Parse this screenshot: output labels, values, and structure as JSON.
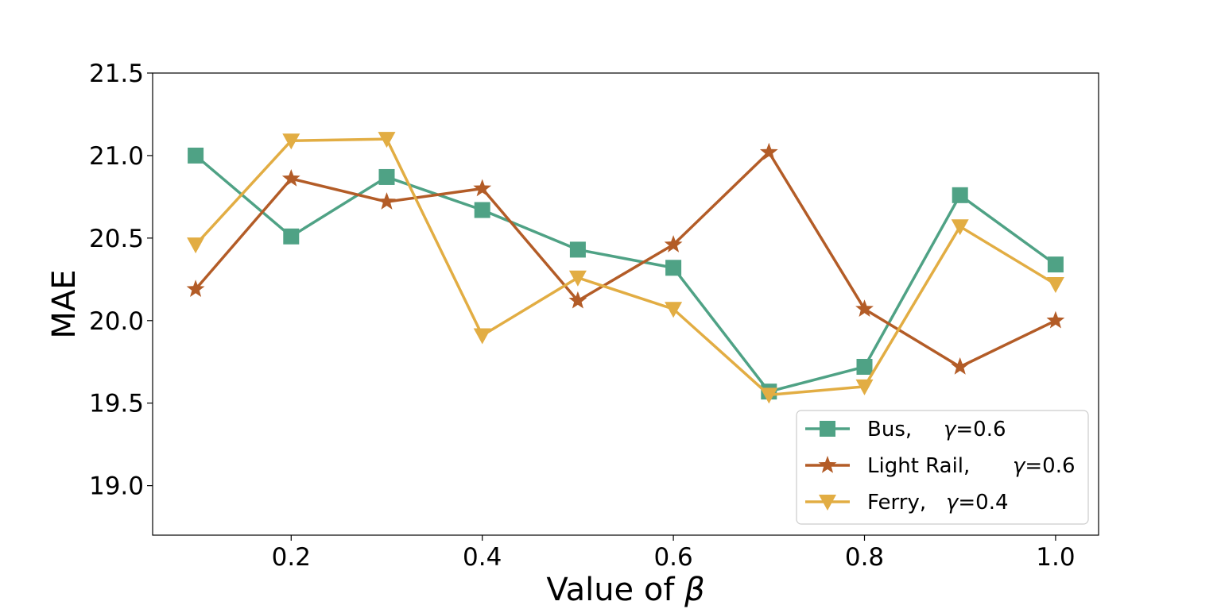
{
  "chart_data": {
    "type": "line",
    "title": "",
    "xlabel_prefix": "Value of ",
    "xlabel_symbol": "β",
    "ylabel": "MAE",
    "x": [
      0.1,
      0.2,
      0.3,
      0.4,
      0.5,
      0.6,
      0.7,
      0.8,
      0.9,
      1.0
    ],
    "xlim": [
      0.055,
      1.045
    ],
    "ylim": [
      18.7,
      21.5
    ],
    "xticks": [
      0.2,
      0.4,
      0.6,
      0.8,
      1.0
    ],
    "xtick_labels": [
      "0.2",
      "0.4",
      "0.6",
      "0.8",
      "1.0"
    ],
    "yticks": [
      19.0,
      19.5,
      20.0,
      20.5,
      21.0,
      21.5
    ],
    "ytick_labels": [
      "19.0",
      "19.5",
      "20.0",
      "20.5",
      "21.0",
      "21.5"
    ],
    "grid": false,
    "legend_position": "lower-right",
    "series": [
      {
        "name": "Bus,",
        "param": "γ=0.6",
        "color": "#4fa285",
        "marker": "square",
        "values": [
          21.0,
          20.51,
          20.87,
          20.67,
          20.43,
          20.32,
          19.57,
          19.72,
          20.76,
          20.34
        ]
      },
      {
        "name": "Light Rail,",
        "param": "γ=0.6",
        "color": "#b35c27",
        "marker": "star",
        "values": [
          20.19,
          20.86,
          20.72,
          20.8,
          20.12,
          20.46,
          21.02,
          20.07,
          19.72,
          20.0
        ]
      },
      {
        "name": "Ferry,",
        "param": "γ=0.4",
        "color": "#e2ad43",
        "marker": "triangle-down",
        "values": [
          20.46,
          21.09,
          21.1,
          19.91,
          20.26,
          20.07,
          19.55,
          19.6,
          20.57,
          20.22
        ]
      }
    ]
  }
}
